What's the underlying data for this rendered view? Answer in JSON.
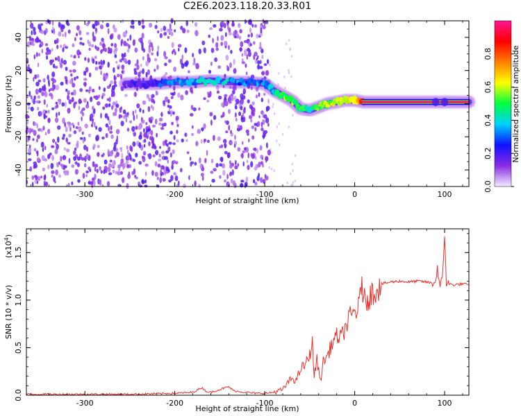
{
  "page": {
    "title": "C2E6.2023.118.20.33.R01"
  },
  "chart_data": [
    {
      "type": "heatmap",
      "name": "spectrogram",
      "xlabel": "Height of straight line (km)",
      "ylabel": "Frequency (Hz)",
      "xlim": [
        -365,
        127
      ],
      "ylim": [
        -50,
        50
      ],
      "xticks": [
        -300,
        -200,
        -100,
        0,
        100
      ],
      "xtick_labels": [
        "-300",
        "-200",
        "-100",
        "0",
        "100"
      ],
      "yticks": [
        -40,
        -20,
        0,
        20,
        40
      ],
      "ytick_labels": [
        "-40",
        "-20",
        "0",
        "20",
        "40"
      ],
      "colorbar": {
        "label": "Normalized spectral amplitude",
        "range": [
          0,
          1
        ],
        "ticks": [
          0.0,
          0.2,
          0.4,
          0.6,
          0.8
        ],
        "tick_labels": [
          "0.0",
          "0.2",
          "0.4",
          "0.6",
          "0.8"
        ],
        "colors": [
          "#f4eeff",
          "#8a2be2",
          "#1010ff",
          "#00d0ff",
          "#00ff40",
          "#ffff00",
          "#ff7f00",
          "#ff0000",
          "#ff1493"
        ]
      },
      "signal_track": {
        "x": [
          -255,
          -240,
          -220,
          -200,
          -180,
          -160,
          -140,
          -120,
          -100,
          -90,
          -80,
          -70,
          -60,
          -50,
          -40,
          -30,
          -20,
          -10,
          0,
          10,
          127
        ],
        "y": [
          12,
          12,
          12,
          13,
          13,
          14,
          13,
          13,
          12,
          8,
          5,
          2,
          -3,
          -4,
          -2,
          0,
          1,
          2,
          2,
          1,
          1
        ],
        "amplitude": [
          0.15,
          0.2,
          0.25,
          0.3,
          0.35,
          0.4,
          0.35,
          0.3,
          0.3,
          0.35,
          0.5,
          0.55,
          0.5,
          0.45,
          0.5,
          0.55,
          0.6,
          0.6,
          0.65,
          0.9,
          0.9
        ]
      },
      "noise_region_x": [
        -365,
        -95
      ]
    },
    {
      "type": "line",
      "name": "snr",
      "xlabel": "Height of straight line (km)",
      "ylabel": "SNR (10 * v/v)",
      "y_multiplier_label": "(x10",
      "y_multiplier_exp": "4",
      "y_multiplier_close": ")",
      "xlim": [
        -365,
        127
      ],
      "ylim": [
        0,
        1.75
      ],
      "xticks": [
        -300,
        -200,
        -100,
        0,
        100
      ],
      "xtick_labels": [
        "-300",
        "-200",
        "-100",
        "0",
        "100"
      ],
      "yticks": [
        0.0,
        0.5,
        1.0,
        1.5
      ],
      "ytick_labels": [
        "0.0",
        "0.5",
        "1.0",
        "1.5"
      ],
      "series": [
        {
          "color": "#e8302a",
          "x": [
            -365,
            -300,
            -250,
            -200,
            -180,
            -170,
            -165,
            -160,
            -150,
            -140,
            -135,
            -130,
            -120,
            -110,
            -100,
            -90,
            -80,
            -75,
            -70,
            -65,
            -60,
            -55,
            -50,
            -47,
            -45,
            -42,
            -40,
            -38,
            -35,
            -30,
            -25,
            -20,
            -15,
            -10,
            -5,
            0,
            5,
            8,
            10,
            12,
            15,
            20,
            25,
            30,
            40,
            50,
            60,
            70,
            80,
            85,
            90,
            92,
            95,
            98,
            100,
            102,
            105,
            110,
            120,
            127
          ],
          "y": [
            0.01,
            0.01,
            0.01,
            0.02,
            0.03,
            0.08,
            0.04,
            0.03,
            0.06,
            0.09,
            0.05,
            0.04,
            0.03,
            0.02,
            0.02,
            0.03,
            0.06,
            0.12,
            0.18,
            0.15,
            0.28,
            0.32,
            0.42,
            0.55,
            0.2,
            0.38,
            0.25,
            0.15,
            0.35,
            0.42,
            0.55,
            0.62,
            0.6,
            0.72,
            0.82,
            0.88,
            0.92,
            1.25,
            0.98,
            1.0,
            1.03,
            1.08,
            1.13,
            1.17,
            1.19,
            1.2,
            1.19,
            1.2,
            1.19,
            1.18,
            1.19,
            1.35,
            1.1,
            1.3,
            1.7,
            1.18,
            1.17,
            1.16,
            1.17,
            1.16
          ]
        }
      ]
    }
  ]
}
